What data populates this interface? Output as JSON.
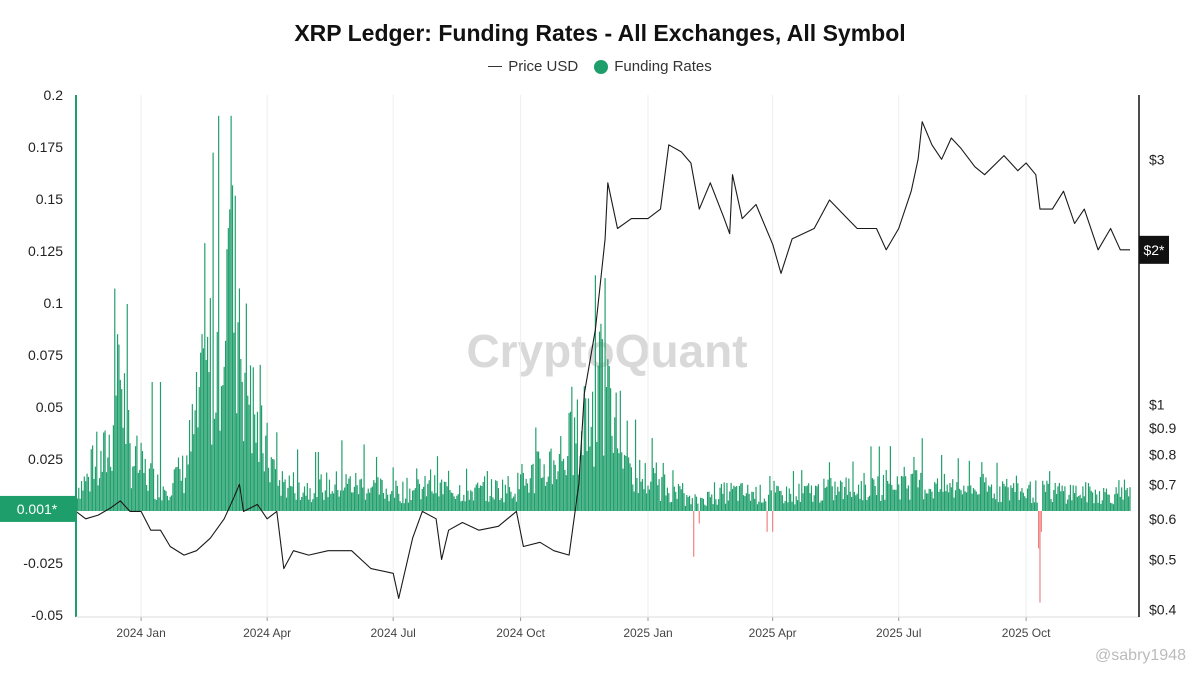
{
  "chart_data": {
    "type": "bar",
    "title": "XRP Ledger: Funding Rates - All Exchanges, All Symbol",
    "legend": [
      {
        "name": "Price USD",
        "color": "#333333",
        "marker": "line"
      },
      {
        "name": "Funding Rates",
        "color": "#1e9e6a",
        "marker": "dot"
      }
    ],
    "legend_position": "top-center",
    "watermark": "CryptoQuant",
    "credit": "@sabry1948",
    "x_range": [
      "2023-11-15",
      "2025-12-15"
    ],
    "x_ticks": [
      {
        "date": "2024-01-01",
        "label": "2024 Jan"
      },
      {
        "date": "2024-04-01",
        "label": "2024 Apr"
      },
      {
        "date": "2024-07-01",
        "label": "2024 Jul"
      },
      {
        "date": "2024-10-01",
        "label": "2024 Oct"
      },
      {
        "date": "2025-01-01",
        "label": "2025 Jan"
      },
      {
        "date": "2025-04-01",
        "label": "2025 Apr"
      },
      {
        "date": "2025-07-01",
        "label": "2025 Jul"
      },
      {
        "date": "2025-10-01",
        "label": "2025 Oct"
      }
    ],
    "left_axis": {
      "ylim": [
        -0.05,
        0.2
      ],
      "ticks": [
        "0.2",
        "0.175",
        "0.15",
        "0.125",
        "0.1",
        "0.075",
        "0.05",
        "0.025",
        "-0.025",
        "-0.05"
      ],
      "current_label": "0.001*",
      "current_value": 0.001
    },
    "right_axis": {
      "scale": "log",
      "ylim": [
        0.39,
        4.0
      ],
      "ticks": [
        {
          "value": 3,
          "label": "$3"
        },
        {
          "value": 1,
          "label": "$1"
        },
        {
          "value": 0.9,
          "label": "$0.9"
        },
        {
          "value": 0.8,
          "label": "$0.8"
        },
        {
          "value": 0.7,
          "label": "$0.7"
        },
        {
          "value": 0.6,
          "label": "$0.6"
        },
        {
          "value": 0.5,
          "label": "$0.5"
        },
        {
          "value": 0.4,
          "label": "$0.4"
        }
      ],
      "current_label": "$2*",
      "current_value": 2.0
    },
    "positive_color": "#1e9e6a",
    "negative_color": "#f08080",
    "funding_envelope": [
      [
        "2023-11-15",
        0.012
      ],
      [
        "2023-12-01",
        0.02
      ],
      [
        "2023-12-10",
        0.035
      ],
      [
        "2023-12-16",
        0.08
      ],
      [
        "2023-12-24",
        0.03
      ],
      [
        "2024-01-01",
        0.022
      ],
      [
        "2024-01-15",
        0.012
      ],
      [
        "2024-02-01",
        0.02
      ],
      [
        "2024-02-15",
        0.06
      ],
      [
        "2024-02-25",
        0.09
      ],
      [
        "2024-03-05",
        0.13
      ],
      [
        "2024-03-15",
        0.08
      ],
      [
        "2024-03-25",
        0.04
      ],
      [
        "2024-04-10",
        0.015
      ],
      [
        "2024-05-01",
        0.012
      ],
      [
        "2024-06-01",
        0.014
      ],
      [
        "2024-07-01",
        0.01
      ],
      [
        "2024-08-01",
        0.012
      ],
      [
        "2024-09-01",
        0.01
      ],
      [
        "2024-10-01",
        0.013
      ],
      [
        "2024-11-01",
        0.03
      ],
      [
        "2024-11-15",
        0.04
      ],
      [
        "2024-11-25",
        0.06
      ],
      [
        "2024-12-05",
        0.05
      ],
      [
        "2024-12-20",
        0.02
      ],
      [
        "2025-01-15",
        0.012
      ],
      [
        "2025-02-01",
        0.005
      ],
      [
        "2025-03-01",
        0.01
      ],
      [
        "2025-04-01",
        0.008
      ],
      [
        "2025-05-01",
        0.01
      ],
      [
        "2025-06-01",
        0.012
      ],
      [
        "2025-07-01",
        0.015
      ],
      [
        "2025-08-01",
        0.012
      ],
      [
        "2025-09-01",
        0.012
      ],
      [
        "2025-10-01",
        0.01
      ],
      [
        "2025-11-01",
        0.01
      ],
      [
        "2025-12-15",
        0.008
      ]
    ],
    "funding_spikes": [
      [
        "2023-12-15",
        0.085
      ],
      [
        "2023-12-16",
        0.08
      ],
      [
        "2024-01-09",
        0.062
      ],
      [
        "2024-01-15",
        0.062
      ],
      [
        "2024-01-25",
        0.02
      ],
      [
        "2024-02-28",
        0.06
      ],
      [
        "2024-03-04",
        0.136
      ],
      [
        "2024-03-05",
        0.145
      ],
      [
        "2024-03-06",
        0.19
      ],
      [
        "2024-03-12",
        0.107
      ],
      [
        "2024-03-20",
        0.07
      ],
      [
        "2024-04-05",
        0.025
      ],
      [
        "2024-05-25",
        0.034
      ],
      [
        "2024-06-10",
        0.032
      ],
      [
        "2024-07-28",
        0.02
      ],
      [
        "2024-10-20",
        0.014
      ],
      [
        "2024-11-16",
        0.06
      ],
      [
        "2024-11-28",
        0.09
      ],
      [
        "2024-12-01",
        0.112
      ],
      [
        "2024-12-03",
        0.073
      ],
      [
        "2024-12-08",
        0.045
      ],
      [
        "2025-07-18",
        0.035
      ],
      [
        "2025-02-03",
        -0.022
      ],
      [
        "2025-02-07",
        -0.006
      ],
      [
        "2025-03-28",
        -0.01
      ],
      [
        "2025-04-01",
        -0.01
      ],
      [
        "2025-10-11",
        -0.044
      ],
      [
        "2025-10-10",
        -0.018
      ],
      [
        "2025-10-12",
        -0.01
      ]
    ],
    "price_usd": [
      [
        "2023-11-15",
        0.62
      ],
      [
        "2023-11-22",
        0.6
      ],
      [
        "2023-12-01",
        0.61
      ],
      [
        "2023-12-10",
        0.63
      ],
      [
        "2023-12-17",
        0.65
      ],
      [
        "2023-12-24",
        0.62
      ],
      [
        "2024-01-01",
        0.62
      ],
      [
        "2024-01-08",
        0.57
      ],
      [
        "2024-01-15",
        0.57
      ],
      [
        "2024-01-22",
        0.53
      ],
      [
        "2024-02-01",
        0.51
      ],
      [
        "2024-02-10",
        0.52
      ],
      [
        "2024-02-20",
        0.55
      ],
      [
        "2024-03-01",
        0.6
      ],
      [
        "2024-03-08",
        0.66
      ],
      [
        "2024-03-12",
        0.7
      ],
      [
        "2024-03-15",
        0.62
      ],
      [
        "2024-03-25",
        0.64
      ],
      [
        "2024-04-01",
        0.6
      ],
      [
        "2024-04-08",
        0.62
      ],
      [
        "2024-04-13",
        0.48
      ],
      [
        "2024-04-20",
        0.52
      ],
      [
        "2024-05-01",
        0.51
      ],
      [
        "2024-05-15",
        0.52
      ],
      [
        "2024-06-01",
        0.52
      ],
      [
        "2024-06-15",
        0.48
      ],
      [
        "2024-07-01",
        0.47
      ],
      [
        "2024-07-05",
        0.42
      ],
      [
        "2024-07-15",
        0.55
      ],
      [
        "2024-07-22",
        0.62
      ],
      [
        "2024-08-01",
        0.6
      ],
      [
        "2024-08-05",
        0.5
      ],
      [
        "2024-08-10",
        0.57
      ],
      [
        "2024-08-20",
        0.59
      ],
      [
        "2024-09-01",
        0.57
      ],
      [
        "2024-09-15",
        0.58
      ],
      [
        "2024-09-28",
        0.62
      ],
      [
        "2024-10-03",
        0.53
      ],
      [
        "2024-10-15",
        0.54
      ],
      [
        "2024-10-25",
        0.52
      ],
      [
        "2024-11-05",
        0.51
      ],
      [
        "2024-11-12",
        0.7
      ],
      [
        "2024-11-16",
        1.05
      ],
      [
        "2024-11-24",
        1.4
      ],
      [
        "2024-12-01",
        2.1
      ],
      [
        "2024-12-03",
        2.7
      ],
      [
        "2024-12-10",
        2.2
      ],
      [
        "2024-12-20",
        2.3
      ],
      [
        "2025-01-01",
        2.3
      ],
      [
        "2025-01-10",
        2.4
      ],
      [
        "2025-01-16",
        3.2
      ],
      [
        "2025-01-25",
        3.1
      ],
      [
        "2025-02-01",
        2.95
      ],
      [
        "2025-02-07",
        2.4
      ],
      [
        "2025-02-15",
        2.7
      ],
      [
        "2025-02-25",
        2.3
      ],
      [
        "2025-03-01",
        2.15
      ],
      [
        "2025-03-03",
        2.8
      ],
      [
        "2025-03-10",
        2.3
      ],
      [
        "2025-03-20",
        2.45
      ],
      [
        "2025-04-01",
        2.05
      ],
      [
        "2025-04-07",
        1.8
      ],
      [
        "2025-04-15",
        2.1
      ],
      [
        "2025-05-01",
        2.2
      ],
      [
        "2025-05-12",
        2.5
      ],
      [
        "2025-05-25",
        2.3
      ],
      [
        "2025-06-01",
        2.2
      ],
      [
        "2025-06-15",
        2.2
      ],
      [
        "2025-06-22",
        2.0
      ],
      [
        "2025-07-01",
        2.2
      ],
      [
        "2025-07-10",
        2.6
      ],
      [
        "2025-07-15",
        3.0
      ],
      [
        "2025-07-18",
        3.55
      ],
      [
        "2025-07-25",
        3.2
      ],
      [
        "2025-08-01",
        3.0
      ],
      [
        "2025-08-08",
        3.3
      ],
      [
        "2025-08-15",
        3.15
      ],
      [
        "2025-08-25",
        2.9
      ],
      [
        "2025-09-01",
        2.8
      ],
      [
        "2025-09-15",
        3.05
      ],
      [
        "2025-09-25",
        2.85
      ],
      [
        "2025-10-01",
        2.95
      ],
      [
        "2025-10-08",
        2.8
      ],
      [
        "2025-10-11",
        2.4
      ],
      [
        "2025-10-20",
        2.4
      ],
      [
        "2025-10-28",
        2.6
      ],
      [
        "2025-11-05",
        2.25
      ],
      [
        "2025-11-12",
        2.4
      ],
      [
        "2025-11-22",
        2.0
      ],
      [
        "2025-12-01",
        2.2
      ],
      [
        "2025-12-08",
        2.0
      ],
      [
        "2025-12-15",
        2.0
      ]
    ]
  }
}
